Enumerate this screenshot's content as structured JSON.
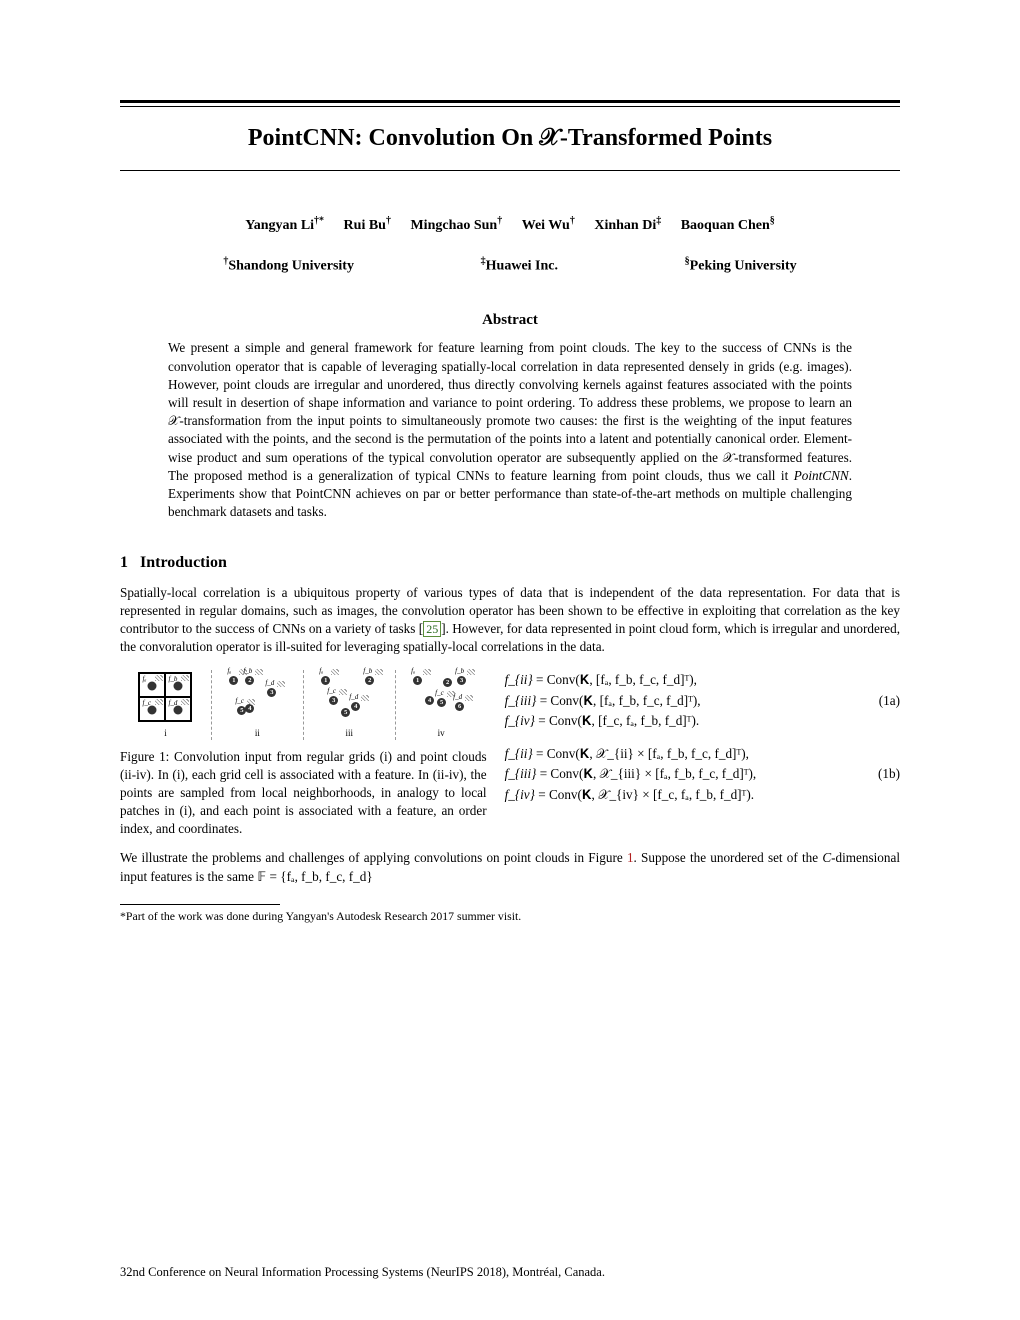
{
  "title": "PointCNN: Convolution On 𝒳-Transformed Points",
  "authors": [
    {
      "name": "Yangyan Li",
      "marks": "†*"
    },
    {
      "name": "Rui Bu",
      "marks": "†"
    },
    {
      "name": "Mingchao Sun",
      "marks": "†"
    },
    {
      "name": "Wei Wu",
      "marks": "†"
    },
    {
      "name": "Xinhan Di",
      "marks": "‡"
    },
    {
      "name": "Baoquan Chen",
      "marks": "§"
    }
  ],
  "affiliations": [
    {
      "mark": "†",
      "name": "Shandong University"
    },
    {
      "mark": "‡",
      "name": "Huawei Inc."
    },
    {
      "mark": "§",
      "name": "Peking University"
    }
  ],
  "abstract_heading": "Abstract",
  "abstract_text": "We present a simple and general framework for feature learning from point clouds. The key to the success of CNNs is the convolution operator that is capable of leveraging spatially-local correlation in data represented densely in grids (e.g. images). However, point clouds are irregular and unordered, thus directly convolving kernels against features associated with the points will result in desertion of shape information and variance to point ordering. To address these problems, we propose to learn an 𝒳-transformation from the input points to simultaneously promote two causes: the first is the weighting of the input features associated with the points, and the second is the permutation of the points into a latent and potentially canonical order. Element-wise product and sum operations of the typical convolution operator are subsequently applied on the 𝒳-transformed features. The proposed method is a generalization of typical CNNs to feature learning from point clouds, thus we call it PointCNN. Experiments show that PointCNN achieves on par or better performance than state-of-the-art methods on multiple challenging benchmark datasets and tasks.",
  "pointcnn_em": "PointCNN",
  "section1": {
    "num": "1",
    "title": "Introduction"
  },
  "intro_para_a": "Spatially-local correlation is a ubiquitous property of various types of data that is independent of the data representation. For data that is represented in regular domains, such as images, the convolution operator has been shown to be effective in exploiting that correlation as the key contributor to the success of CNNs on a variety of tasks [",
  "intro_cite": "25",
  "intro_para_b": "]. However, for data represented in point cloud form, which is irregular and unordered, the convoralution operator is ill-suited for leveraging spatially-local correlations in the data.",
  "figure1_caption": "Figure 1: Convolution input from regular grids (i) and point clouds (ii-iv). In (i), each grid cell is associated with a feature. In (ii-iv), the points are sampled from local neighborhoods, in analogy to local patches in (i), and each point is associated with a feature, an order index, and coordinates.",
  "panel_labels": [
    "i",
    "ii",
    "iii",
    "iv"
  ],
  "feat_labels": {
    "a": "fₐ",
    "b": "f_b",
    "c": "f_c",
    "d": "f_d"
  },
  "equations": {
    "block_a": {
      "l1_lhs": "f_{ii}",
      "l1_rhs": " = Conv(𝐊, [fₐ, f_b, f_c, f_d]ᵀ),",
      "l2_lhs": "f_{iii}",
      "l2_rhs": " = Conv(𝐊, [fₐ, f_b, f_c, f_d]ᵀ),",
      "l3_lhs": "f_{iv}",
      "l3_rhs": " = Conv(𝐊, [f_c, fₐ, f_b, f_d]ᵀ).",
      "tag": "(1a)"
    },
    "block_b": {
      "l1_lhs": "f_{ii}",
      "l1_rhs": " = Conv(𝐊, 𝒳_{ii} × [fₐ, f_b, f_c, f_d]ᵀ),",
      "l2_lhs": "f_{iii}",
      "l2_rhs": " = Conv(𝐊, 𝒳_{iii} × [fₐ, f_b, f_c, f_d]ᵀ),",
      "l3_lhs": "f_{iv}",
      "l3_rhs": " = Conv(𝐊, 𝒳_{iv} × [f_c, fₐ, f_b, f_d]ᵀ).",
      "tag": "(1b)"
    }
  },
  "para2_a": "We illustrate the problems and challenges of applying convolutions on point clouds in Figure ",
  "para2_figref": "1",
  "para2_b": ". Suppose the unordered set of the ",
  "para2_c": "C",
  "para2_d": "-dimensional input features is the same 𝔽 = {fₐ, f_b, f_c, f_d}",
  "footnote": "*Part of the work was done during Yangyan's Autodesk Research 2017 summer visit.",
  "conference": "32nd Conference on Neural Information Processing Systems (NeurIPS 2018), Montréal, Canada.",
  "panel_points": {
    "ii": [
      {
        "n": "1",
        "x": 6,
        "y": 4,
        "f": "a"
      },
      {
        "n": "2",
        "x": 22,
        "y": 4,
        "f": "b"
      },
      {
        "n": "3",
        "x": 44,
        "y": 16,
        "f": "d"
      },
      {
        "n": "4",
        "x": 22,
        "y": 32
      },
      {
        "n": "5",
        "x": 14,
        "y": 34,
        "f": "c"
      }
    ],
    "iii": [
      {
        "n": "1",
        "x": 6,
        "y": 4,
        "f": "a"
      },
      {
        "n": "2",
        "x": 50,
        "y": 4,
        "f": "b"
      },
      {
        "n": "3",
        "x": 14,
        "y": 24,
        "f": "c"
      },
      {
        "n": "4",
        "x": 36,
        "y": 30,
        "f": "d"
      },
      {
        "n": "5",
        "x": 26,
        "y": 36
      }
    ],
    "iv": [
      {
        "n": "1",
        "x": 6,
        "y": 4,
        "f": "a"
      },
      {
        "n": "2",
        "x": 36,
        "y": 6
      },
      {
        "n": "3",
        "x": 50,
        "y": 4,
        "f": "b"
      },
      {
        "n": "4",
        "x": 18,
        "y": 24
      },
      {
        "n": "5",
        "x": 30,
        "y": 26,
        "f": "c"
      },
      {
        "n": "6",
        "x": 48,
        "y": 30,
        "f": "d"
      }
    ]
  }
}
